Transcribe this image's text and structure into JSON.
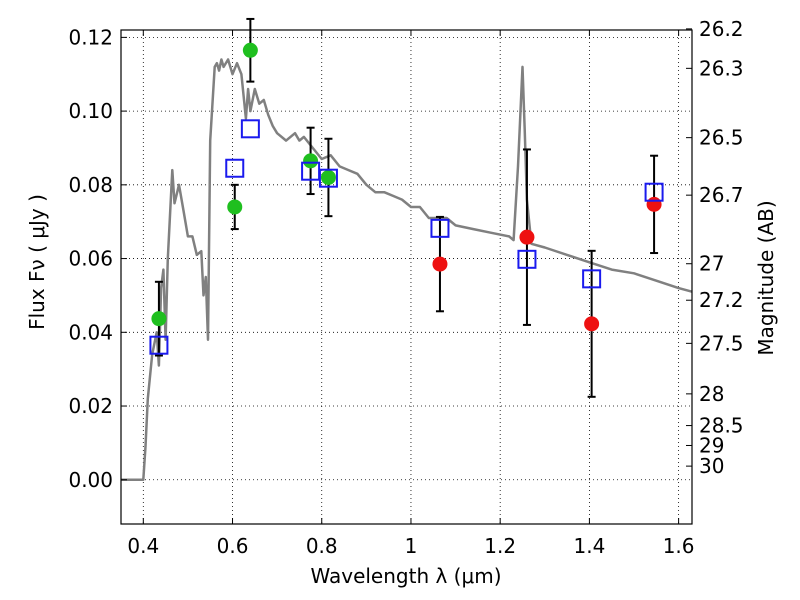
{
  "chart_data": {
    "type": "scatter",
    "xlabel": "Wavelength  λ (μm)",
    "ylabel": "Flux  Fν  ( μJy )",
    "y2label": "Magnitude (AB)",
    "xlim": [
      0.35,
      1.63
    ],
    "ylim": [
      -0.012,
      0.122
    ],
    "grid": true,
    "x_ticks": [
      0.4,
      0.6,
      0.8,
      1.0,
      1.2,
      1.4,
      1.6
    ],
    "x_tick_labels": [
      "0.4",
      "0.6",
      "0.8",
      "1",
      "1.2",
      "1.4",
      "1.6"
    ],
    "y_ticks": [
      0.0,
      0.02,
      0.04,
      0.06,
      0.08,
      0.1,
      0.12
    ],
    "y_tick_labels": [
      "0.00",
      "0.02",
      "0.04",
      "0.06",
      "0.08",
      "0.10",
      "0.12"
    ],
    "y2_ticks": [
      {
        "label": "26.2",
        "flux": 0.1223
      },
      {
        "label": "26.3",
        "flux": 0.1116
      },
      {
        "label": "26.5",
        "flux": 0.0928
      },
      {
        "label": "26.7",
        "flux": 0.0772
      },
      {
        "label": "27",
        "flux": 0.0586
      },
      {
        "label": "27.2",
        "flux": 0.0487
      },
      {
        "label": "27.5",
        "flux": 0.037
      },
      {
        "label": "28",
        "flux": 0.0233
      },
      {
        "label": "28.5",
        "flux": 0.0147
      },
      {
        "label": "29",
        "flux": 0.0093
      },
      {
        "label": "30",
        "flux": 0.0037
      }
    ],
    "series": [
      {
        "kind": "line",
        "color": "#808080",
        "points": [
          [
            0.35,
            0.0
          ],
          [
            0.4,
            0.0
          ],
          [
            0.405,
            0.009
          ],
          [
            0.41,
            0.022
          ],
          [
            0.42,
            0.034
          ],
          [
            0.43,
            0.04
          ],
          [
            0.435,
            0.031
          ],
          [
            0.44,
            0.052
          ],
          [
            0.445,
            0.057
          ],
          [
            0.45,
            0.038
          ],
          [
            0.455,
            0.06
          ],
          [
            0.465,
            0.084
          ],
          [
            0.47,
            0.075
          ],
          [
            0.48,
            0.08
          ],
          [
            0.49,
            0.073
          ],
          [
            0.5,
            0.066
          ],
          [
            0.51,
            0.066
          ],
          [
            0.52,
            0.061
          ],
          [
            0.53,
            0.062
          ],
          [
            0.535,
            0.05
          ],
          [
            0.54,
            0.055
          ],
          [
            0.545,
            0.038
          ],
          [
            0.55,
            0.092
          ],
          [
            0.56,
            0.112
          ],
          [
            0.565,
            0.113
          ],
          [
            0.57,
            0.111
          ],
          [
            0.575,
            0.114
          ],
          [
            0.58,
            0.112
          ],
          [
            0.59,
            0.114
          ],
          [
            0.6,
            0.11
          ],
          [
            0.61,
            0.113
          ],
          [
            0.62,
            0.11
          ],
          [
            0.63,
            0.098
          ],
          [
            0.635,
            0.106
          ],
          [
            0.64,
            0.1
          ],
          [
            0.65,
            0.106
          ],
          [
            0.66,
            0.102
          ],
          [
            0.67,
            0.103
          ],
          [
            0.68,
            0.099
          ],
          [
            0.69,
            0.096
          ],
          [
            0.7,
            0.094
          ],
          [
            0.72,
            0.092
          ],
          [
            0.74,
            0.094
          ],
          [
            0.75,
            0.092
          ],
          [
            0.76,
            0.093
          ],
          [
            0.78,
            0.09
          ],
          [
            0.8,
            0.087
          ],
          [
            0.82,
            0.088
          ],
          [
            0.84,
            0.085
          ],
          [
            0.86,
            0.084
          ],
          [
            0.88,
            0.083
          ],
          [
            0.9,
            0.08
          ],
          [
            0.92,
            0.078
          ],
          [
            0.94,
            0.078
          ],
          [
            0.96,
            0.077
          ],
          [
            0.98,
            0.076
          ],
          [
            1.0,
            0.074
          ],
          [
            1.02,
            0.074
          ],
          [
            1.04,
            0.071
          ],
          [
            1.06,
            0.071
          ],
          [
            1.08,
            0.071
          ],
          [
            1.1,
            0.069
          ],
          [
            1.14,
            0.068
          ],
          [
            1.18,
            0.067
          ],
          [
            1.22,
            0.066
          ],
          [
            1.23,
            0.065
          ],
          [
            1.24,
            0.085
          ],
          [
            1.25,
            0.112
          ],
          [
            1.255,
            0.095
          ],
          [
            1.26,
            0.076
          ],
          [
            1.27,
            0.064
          ],
          [
            1.3,
            0.063
          ],
          [
            1.35,
            0.061
          ],
          [
            1.4,
            0.059
          ],
          [
            1.45,
            0.057
          ],
          [
            1.5,
            0.056
          ],
          [
            1.55,
            0.054
          ],
          [
            1.6,
            0.052
          ],
          [
            1.63,
            0.051
          ]
        ]
      },
      {
        "kind": "points",
        "marker": "circle",
        "color": "#1fbf1f",
        "points": [
          {
            "x": 0.435,
            "y": 0.0437,
            "yerr": 0.01
          },
          {
            "x": 0.605,
            "y": 0.074,
            "yerr": 0.006
          },
          {
            "x": 0.64,
            "y": 0.1165,
            "yerr": 0.0085
          },
          {
            "x": 0.775,
            "y": 0.0865,
            "yerr": 0.009
          },
          {
            "x": 0.815,
            "y": 0.082,
            "yerr": 0.0105
          }
        ]
      },
      {
        "kind": "points",
        "marker": "circle",
        "color": "#ee1111",
        "points": [
          {
            "x": 1.065,
            "y": 0.0585,
            "yerr": 0.0128
          },
          {
            "x": 1.26,
            "y": 0.0658,
            "yerr": 0.0238
          },
          {
            "x": 1.405,
            "y": 0.0423,
            "yerr": 0.0198
          },
          {
            "x": 1.545,
            "y": 0.0747,
            "yerr": 0.0132
          }
        ]
      },
      {
        "kind": "points",
        "marker": "open-square",
        "color": "#1a1aee",
        "points": [
          {
            "x": 0.435,
            "y": 0.0365
          },
          {
            "x": 0.605,
            "y": 0.0845
          },
          {
            "x": 0.64,
            "y": 0.0952
          },
          {
            "x": 0.775,
            "y": 0.0837
          },
          {
            "x": 0.815,
            "y": 0.0818
          },
          {
            "x": 1.065,
            "y": 0.0682
          },
          {
            "x": 1.26,
            "y": 0.0598
          },
          {
            "x": 1.405,
            "y": 0.0545
          },
          {
            "x": 1.545,
            "y": 0.078
          }
        ]
      }
    ]
  }
}
